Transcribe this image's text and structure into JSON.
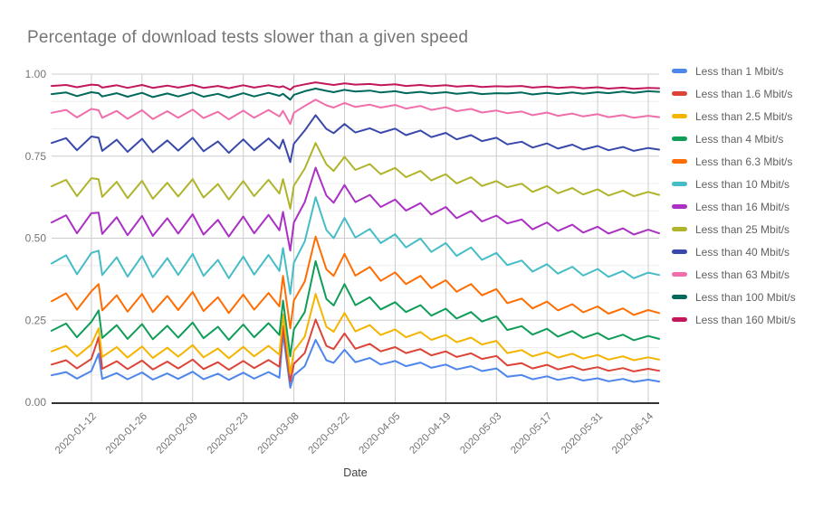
{
  "chart_data": {
    "type": "line",
    "title": "Percentage of download tests slower than a given speed",
    "xlabel": "Date",
    "ylabel": "",
    "ylim": [
      0,
      1
    ],
    "grid": true,
    "legend_position": "right",
    "y_ticks": [
      0,
      0.25,
      0.5,
      0.75,
      1
    ],
    "y_tick_labels": [
      "0.00",
      "0.25",
      "0.50",
      "0.75",
      "1.00"
    ],
    "x_ticks": [
      "2020-01-12",
      "2020-01-26",
      "2020-02-09",
      "2020-02-23",
      "2020-03-08",
      "2020-03-22",
      "2020-04-05",
      "2020-04-19",
      "2020-05-03",
      "2020-05-17",
      "2020-05-31",
      "2020-06-14"
    ],
    "x": [
      "2020-01-01",
      "2020-01-05",
      "2020-01-08",
      "2020-01-12",
      "2020-01-14",
      "2020-01-15",
      "2020-01-19",
      "2020-01-22",
      "2020-01-26",
      "2020-01-29",
      "2020-02-02",
      "2020-02-05",
      "2020-02-09",
      "2020-02-12",
      "2020-02-16",
      "2020-02-19",
      "2020-02-23",
      "2020-02-26",
      "2020-03-01",
      "2020-03-04",
      "2020-03-05",
      "2020-03-07",
      "2020-03-08",
      "2020-03-11",
      "2020-03-14",
      "2020-03-17",
      "2020-03-19",
      "2020-03-22",
      "2020-03-25",
      "2020-03-29",
      "2020-04-01",
      "2020-04-05",
      "2020-04-08",
      "2020-04-12",
      "2020-04-15",
      "2020-04-19",
      "2020-04-22",
      "2020-04-26",
      "2020-04-29",
      "2020-05-03",
      "2020-05-06",
      "2020-05-10",
      "2020-05-13",
      "2020-05-17",
      "2020-05-20",
      "2020-05-24",
      "2020-05-27",
      "2020-05-31",
      "2020-06-03",
      "2020-06-07",
      "2020-06-10",
      "2020-06-14",
      "2020-06-17"
    ],
    "series": [
      {
        "name": "Less than 1 Mbit/s",
        "color": "#4E86EC",
        "values": [
          0.082,
          0.092,
          0.072,
          0.095,
          0.148,
          0.071,
          0.089,
          0.07,
          0.091,
          0.069,
          0.088,
          0.071,
          0.093,
          0.07,
          0.087,
          0.068,
          0.09,
          0.072,
          0.092,
          0.075,
          0.21,
          0.044,
          0.082,
          0.11,
          0.19,
          0.128,
          0.12,
          0.16,
          0.122,
          0.135,
          0.115,
          0.126,
          0.11,
          0.121,
          0.105,
          0.115,
          0.1,
          0.11,
          0.095,
          0.103,
          0.078,
          0.083,
          0.07,
          0.079,
          0.068,
          0.076,
          0.066,
          0.073,
          0.064,
          0.071,
          0.062,
          0.069,
          0.063
        ]
      },
      {
        "name": "Less than 1.6 Mbit/s",
        "color": "#DB4437",
        "values": [
          0.115,
          0.128,
          0.103,
          0.132,
          0.198,
          0.102,
          0.125,
          0.101,
          0.127,
          0.1,
          0.124,
          0.103,
          0.13,
          0.101,
          0.122,
          0.099,
          0.126,
          0.104,
          0.129,
          0.108,
          0.232,
          0.063,
          0.117,
          0.15,
          0.252,
          0.172,
          0.162,
          0.21,
          0.163,
          0.178,
          0.155,
          0.168,
          0.15,
          0.162,
          0.143,
          0.155,
          0.138,
          0.149,
          0.132,
          0.141,
          0.112,
          0.119,
          0.103,
          0.114,
          0.1,
          0.11,
          0.098,
          0.107,
          0.096,
          0.104,
          0.094,
          0.102,
          0.096
        ]
      },
      {
        "name": "Less than 2.5 Mbit/s",
        "color": "#F4B400",
        "values": [
          0.155,
          0.172,
          0.14,
          0.176,
          0.225,
          0.138,
          0.168,
          0.136,
          0.17,
          0.135,
          0.166,
          0.139,
          0.174,
          0.137,
          0.164,
          0.134,
          0.169,
          0.14,
          0.172,
          0.145,
          0.268,
          0.088,
          0.156,
          0.2,
          0.33,
          0.23,
          0.215,
          0.272,
          0.216,
          0.235,
          0.205,
          0.222,
          0.198,
          0.214,
          0.19,
          0.205,
          0.183,
          0.197,
          0.176,
          0.187,
          0.15,
          0.159,
          0.14,
          0.153,
          0.136,
          0.148,
          0.133,
          0.144,
          0.13,
          0.14,
          0.128,
          0.137,
          0.13
        ]
      },
      {
        "name": "Less than 4 Mbit/s",
        "color": "#0F9D58",
        "values": [
          0.218,
          0.24,
          0.198,
          0.245,
          0.28,
          0.196,
          0.235,
          0.193,
          0.238,
          0.192,
          0.233,
          0.197,
          0.243,
          0.195,
          0.23,
          0.19,
          0.237,
          0.198,
          0.241,
          0.205,
          0.31,
          0.14,
          0.222,
          0.275,
          0.43,
          0.315,
          0.295,
          0.36,
          0.296,
          0.32,
          0.283,
          0.305,
          0.275,
          0.296,
          0.264,
          0.285,
          0.255,
          0.275,
          0.246,
          0.262,
          0.22,
          0.232,
          0.206,
          0.224,
          0.2,
          0.217,
          0.196,
          0.211,
          0.192,
          0.206,
          0.189,
          0.202,
          0.193
        ]
      },
      {
        "name": "Less than 6.3 Mbit/s",
        "color": "#FF6D01",
        "values": [
          0.308,
          0.332,
          0.282,
          0.338,
          0.36,
          0.28,
          0.326,
          0.276,
          0.33,
          0.275,
          0.324,
          0.281,
          0.336,
          0.278,
          0.32,
          0.272,
          0.328,
          0.282,
          0.333,
          0.292,
          0.385,
          0.225,
          0.31,
          0.368,
          0.505,
          0.405,
          0.385,
          0.452,
          0.386,
          0.412,
          0.37,
          0.396,
          0.36,
          0.385,
          0.348,
          0.372,
          0.337,
          0.36,
          0.326,
          0.345,
          0.302,
          0.316,
          0.286,
          0.307,
          0.28,
          0.299,
          0.274,
          0.292,
          0.27,
          0.286,
          0.266,
          0.281,
          0.272
        ]
      },
      {
        "name": "Less than 10 Mbit/s",
        "color": "#46BDC6",
        "values": [
          0.423,
          0.448,
          0.39,
          0.455,
          0.462,
          0.388,
          0.442,
          0.383,
          0.446,
          0.381,
          0.439,
          0.388,
          0.452,
          0.385,
          0.434,
          0.378,
          0.444,
          0.389,
          0.449,
          0.4,
          0.47,
          0.33,
          0.425,
          0.49,
          0.625,
          0.525,
          0.5,
          0.562,
          0.502,
          0.528,
          0.485,
          0.512,
          0.472,
          0.499,
          0.458,
          0.485,
          0.446,
          0.472,
          0.434,
          0.455,
          0.418,
          0.432,
          0.398,
          0.421,
          0.392,
          0.413,
          0.386,
          0.406,
          0.382,
          0.4,
          0.378,
          0.395,
          0.388
        ]
      },
      {
        "name": "Less than 16 Mbit/s",
        "color": "#AB30C4",
        "values": [
          0.548,
          0.57,
          0.515,
          0.576,
          0.578,
          0.513,
          0.564,
          0.509,
          0.568,
          0.507,
          0.561,
          0.514,
          0.573,
          0.511,
          0.556,
          0.505,
          0.566,
          0.515,
          0.571,
          0.524,
          0.58,
          0.462,
          0.548,
          0.61,
          0.715,
          0.63,
          0.608,
          0.662,
          0.61,
          0.632,
          0.595,
          0.618,
          0.584,
          0.607,
          0.572,
          0.595,
          0.561,
          0.583,
          0.551,
          0.569,
          0.545,
          0.557,
          0.527,
          0.548,
          0.522,
          0.541,
          0.517,
          0.535,
          0.514,
          0.53,
          0.511,
          0.526,
          0.515
        ]
      },
      {
        "name": "Less than 25 Mbit/s",
        "color": "#AFB42B",
        "values": [
          0.658,
          0.678,
          0.628,
          0.683,
          0.68,
          0.626,
          0.672,
          0.622,
          0.675,
          0.62,
          0.669,
          0.627,
          0.68,
          0.624,
          0.665,
          0.618,
          0.674,
          0.628,
          0.678,
          0.636,
          0.68,
          0.59,
          0.66,
          0.712,
          0.79,
          0.725,
          0.705,
          0.748,
          0.708,
          0.726,
          0.695,
          0.714,
          0.686,
          0.705,
          0.676,
          0.695,
          0.667,
          0.686,
          0.659,
          0.674,
          0.655,
          0.666,
          0.641,
          0.659,
          0.637,
          0.653,
          0.633,
          0.649,
          0.63,
          0.645,
          0.628,
          0.641,
          0.632
        ]
      },
      {
        "name": "Less than 40 Mbit/s",
        "color": "#3949AB",
        "values": [
          0.79,
          0.805,
          0.768,
          0.81,
          0.806,
          0.766,
          0.8,
          0.763,
          0.803,
          0.762,
          0.798,
          0.767,
          0.806,
          0.765,
          0.795,
          0.76,
          0.801,
          0.768,
          0.804,
          0.773,
          0.8,
          0.732,
          0.788,
          0.828,
          0.875,
          0.833,
          0.82,
          0.848,
          0.822,
          0.835,
          0.821,
          0.834,
          0.814,
          0.828,
          0.808,
          0.821,
          0.801,
          0.814,
          0.796,
          0.806,
          0.786,
          0.794,
          0.776,
          0.789,
          0.773,
          0.785,
          0.77,
          0.781,
          0.768,
          0.778,
          0.766,
          0.775,
          0.77
        ]
      },
      {
        "name": "Less than 63 Mbit/s",
        "color": "#F06EA9",
        "values": [
          0.882,
          0.891,
          0.868,
          0.894,
          0.89,
          0.867,
          0.888,
          0.864,
          0.89,
          0.863,
          0.887,
          0.867,
          0.892,
          0.866,
          0.885,
          0.862,
          0.889,
          0.867,
          0.891,
          0.871,
          0.888,
          0.848,
          0.882,
          0.903,
          0.922,
          0.905,
          0.898,
          0.912,
          0.9,
          0.907,
          0.898,
          0.906,
          0.895,
          0.903,
          0.891,
          0.899,
          0.887,
          0.894,
          0.883,
          0.889,
          0.881,
          0.886,
          0.875,
          0.883,
          0.873,
          0.88,
          0.871,
          0.878,
          0.869,
          0.875,
          0.867,
          0.873,
          0.869
        ]
      },
      {
        "name": "Less than 100 Mbit/s",
        "color": "#00695C",
        "values": [
          0.939,
          0.944,
          0.933,
          0.945,
          0.942,
          0.932,
          0.942,
          0.931,
          0.943,
          0.93,
          0.941,
          0.932,
          0.944,
          0.931,
          0.94,
          0.929,
          0.942,
          0.932,
          0.943,
          0.934,
          0.94,
          0.922,
          0.937,
          0.948,
          0.956,
          0.949,
          0.945,
          0.952,
          0.947,
          0.95,
          0.944,
          0.948,
          0.942,
          0.946,
          0.941,
          0.945,
          0.94,
          0.944,
          0.939,
          0.942,
          0.941,
          0.944,
          0.938,
          0.943,
          0.939,
          0.944,
          0.94,
          0.945,
          0.942,
          0.947,
          0.943,
          0.948,
          0.946
        ]
      },
      {
        "name": "Less than 160 Mbit/s",
        "color": "#C2185B",
        "values": [
          0.964,
          0.967,
          0.96,
          0.968,
          0.966,
          0.959,
          0.966,
          0.958,
          0.967,
          0.958,
          0.965,
          0.959,
          0.967,
          0.958,
          0.964,
          0.957,
          0.966,
          0.959,
          0.966,
          0.96,
          0.963,
          0.952,
          0.962,
          0.969,
          0.975,
          0.97,
          0.967,
          0.972,
          0.968,
          0.97,
          0.966,
          0.969,
          0.964,
          0.967,
          0.963,
          0.966,
          0.962,
          0.965,
          0.961,
          0.963,
          0.962,
          0.964,
          0.959,
          0.962,
          0.958,
          0.961,
          0.957,
          0.96,
          0.956,
          0.959,
          0.955,
          0.958,
          0.957
        ]
      }
    ]
  }
}
